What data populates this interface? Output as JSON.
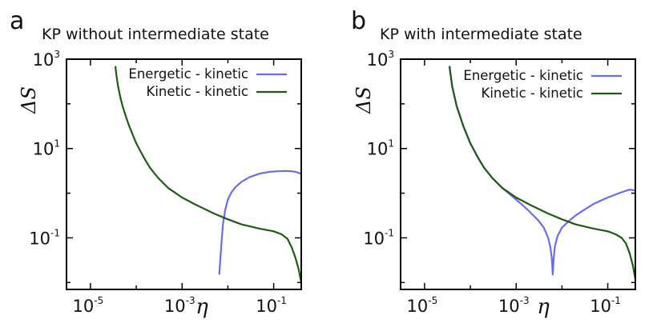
{
  "chart_data": [
    {
      "type": "line",
      "panel_label": "a",
      "title": "KP without intermediate state",
      "xlabel": "η",
      "ylabel": "ΔS",
      "x_scale": "log",
      "y_scale": "log",
      "xlim": [
        3e-06,
        0.4
      ],
      "ylim": [
        0.007,
        1000
      ],
      "x_ticks": [
        {
          "value": 1e-05,
          "base": "10",
          "exp": "-5"
        },
        {
          "value": 0.001,
          "base": "10",
          "exp": "-3"
        },
        {
          "value": 0.1,
          "base": "10",
          "exp": "-1"
        }
      ],
      "y_ticks": [
        {
          "value": 0.1,
          "base": "10",
          "exp": "-1"
        },
        {
          "value": 10,
          "base": "10",
          "exp": "1"
        },
        {
          "value": 1000,
          "base": "10",
          "exp": "3"
        }
      ],
      "legend_position": "top-right",
      "series": [
        {
          "name": "Energetic - kinetic",
          "color": "#6b6bf2",
          "x": [
            0.0065,
            0.0068,
            0.0072,
            0.0078,
            0.0087,
            0.01,
            0.012,
            0.015,
            0.02,
            0.03,
            0.05,
            0.08,
            0.12,
            0.18,
            0.25,
            0.3,
            0.35,
            0.4
          ],
          "y": [
            0.015,
            0.03,
            0.07,
            0.2,
            0.42,
            0.72,
            1.05,
            1.4,
            1.8,
            2.3,
            2.75,
            3.0,
            3.1,
            3.15,
            3.1,
            3.0,
            2.85,
            2.7
          ]
        },
        {
          "name": "Kinetic - kinetic",
          "color": "#1f5a14",
          "x": [
            3.5e-05,
            3.7e-05,
            4e-05,
            4.5e-05,
            5e-05,
            6e-05,
            7e-05,
            0.0001,
            0.00015,
            0.0002,
            0.0003,
            0.0005,
            0.001,
            0.002,
            0.005,
            0.01,
            0.02,
            0.05,
            0.1,
            0.15,
            0.2,
            0.25,
            0.3,
            0.35,
            0.4
          ],
          "y": [
            700,
            420,
            250,
            140,
            90,
            50,
            32,
            13,
            6,
            3.7,
            2.2,
            1.3,
            0.8,
            0.55,
            0.35,
            0.26,
            0.2,
            0.16,
            0.14,
            0.12,
            0.095,
            0.06,
            0.035,
            0.02,
            0.01
          ]
        }
      ]
    },
    {
      "type": "line",
      "panel_label": "b",
      "title": "KP with intermediate state",
      "xlabel": "η",
      "ylabel": "ΔS",
      "x_scale": "log",
      "y_scale": "log",
      "xlim": [
        3e-06,
        0.4
      ],
      "ylim": [
        0.007,
        1000
      ],
      "x_ticks": [
        {
          "value": 1e-05,
          "base": "10",
          "exp": "-5"
        },
        {
          "value": 0.001,
          "base": "10",
          "exp": "-3"
        },
        {
          "value": 0.1,
          "base": "10",
          "exp": "-1"
        }
      ],
      "y_ticks": [
        {
          "value": 0.1,
          "base": "10",
          "exp": "-1"
        },
        {
          "value": 10,
          "base": "10",
          "exp": "1"
        },
        {
          "value": 1000,
          "base": "10",
          "exp": "3"
        }
      ],
      "legend_position": "top-right",
      "series": [
        {
          "name": "Energetic - kinetic",
          "color": "#6b6bf2",
          "x": [
            3.5e-05,
            4e-05,
            5e-05,
            7e-05,
            0.0001,
            0.00015,
            0.0002,
            0.0003,
            0.0005,
            0.001,
            0.0015,
            0.002,
            0.003,
            0.004,
            0.005,
            0.0056,
            0.006,
            0.0063,
            0.0066,
            0.007,
            0.008,
            0.01,
            0.015,
            0.02,
            0.03,
            0.05,
            0.1,
            0.2,
            0.3,
            0.4
          ],
          "y": [
            700,
            250,
            90,
            32,
            13,
            6,
            3.7,
            2.2,
            1.3,
            0.72,
            0.5,
            0.38,
            0.25,
            0.17,
            0.1,
            0.06,
            0.035,
            0.015,
            0.035,
            0.065,
            0.11,
            0.17,
            0.25,
            0.32,
            0.42,
            0.58,
            0.8,
            1.05,
            1.2,
            1.15
          ]
        },
        {
          "name": "Kinetic - kinetic",
          "color": "#1f5a14",
          "x": [
            3.5e-05,
            4e-05,
            5e-05,
            7e-05,
            0.0001,
            0.00015,
            0.0002,
            0.0003,
            0.0005,
            0.001,
            0.002,
            0.005,
            0.01,
            0.02,
            0.05,
            0.1,
            0.15,
            0.2,
            0.25,
            0.3,
            0.35,
            0.4
          ],
          "y": [
            700,
            250,
            90,
            32,
            13,
            6,
            3.7,
            2.2,
            1.3,
            0.8,
            0.55,
            0.35,
            0.26,
            0.2,
            0.16,
            0.14,
            0.12,
            0.1,
            0.075,
            0.045,
            0.025,
            0.012
          ]
        }
      ]
    }
  ]
}
